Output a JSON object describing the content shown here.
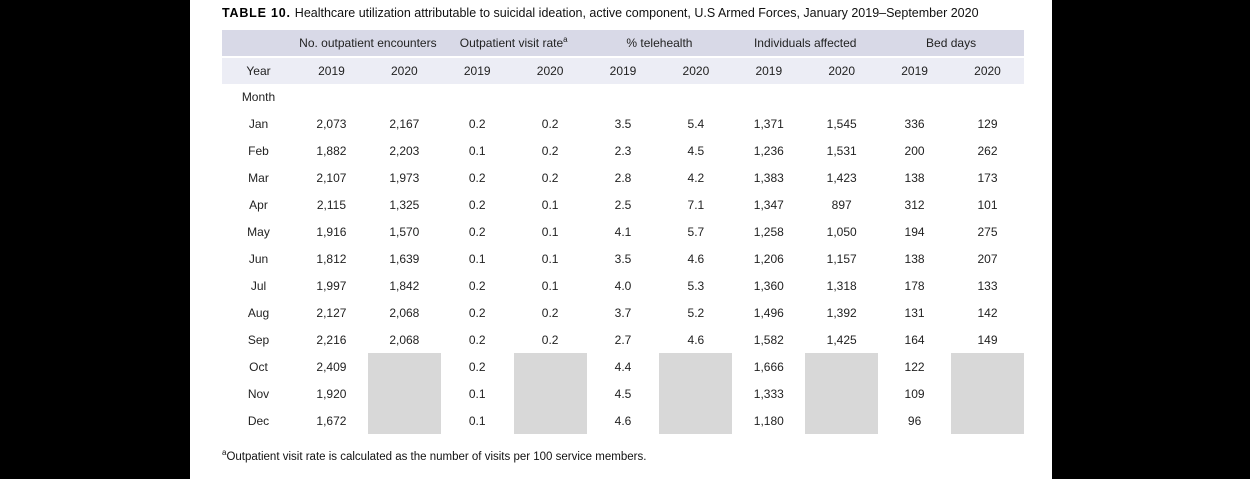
{
  "page": {
    "title_label": "TABLE 10.",
    "title_text": "Healthcare utilization attributable to suicidal ideation, active component, U.S Armed Forces, January 2019–September 2020",
    "footnote_marker": "a",
    "footnote_text": "Outpatient visit rate is calculated as the number of visits  per 100 service members."
  },
  "colors": {
    "group_header_band": "#d8d9e7",
    "year_header_band": "#ecedf5",
    "no_data_mask": "#d8d8d8",
    "text": "#222222"
  },
  "table": {
    "groups": [
      {
        "label": "No. outpatient encounters",
        "sup": ""
      },
      {
        "label": "Outpatient visit rate",
        "sup": "a"
      },
      {
        "label": "% telehealth",
        "sup": ""
      },
      {
        "label": "Individuals affected",
        "sup": ""
      },
      {
        "label": "Bed days",
        "sup": ""
      }
    ],
    "year_row_label": "Year",
    "years": [
      "2019",
      "2020",
      "2019",
      "2020",
      "2019",
      "2020",
      "2019",
      "2020",
      "2019",
      "2020"
    ],
    "month_label": "Month",
    "rows": [
      {
        "month": "Jan",
        "cells": [
          "2,073",
          "2,167",
          "0.2",
          "0.2",
          "3.5",
          "5.4",
          "1,371",
          "1,545",
          "336",
          "129"
        ]
      },
      {
        "month": "Feb",
        "cells": [
          "1,882",
          "2,203",
          "0.1",
          "0.2",
          "2.3",
          "4.5",
          "1,236",
          "1,531",
          "200",
          "262"
        ]
      },
      {
        "month": "Mar",
        "cells": [
          "2,107",
          "1,973",
          "0.2",
          "0.2",
          "2.8",
          "4.2",
          "1,383",
          "1,423",
          "138",
          "173"
        ]
      },
      {
        "month": "Apr",
        "cells": [
          "2,115",
          "1,325",
          "0.2",
          "0.1",
          "2.5",
          "7.1",
          "1,347",
          "897",
          "312",
          "101"
        ]
      },
      {
        "month": "May",
        "cells": [
          "1,916",
          "1,570",
          "0.2",
          "0.1",
          "4.1",
          "5.7",
          "1,258",
          "1,050",
          "194",
          "275"
        ]
      },
      {
        "month": "Jun",
        "cells": [
          "1,812",
          "1,639",
          "0.1",
          "0.1",
          "3.5",
          "4.6",
          "1,206",
          "1,157",
          "138",
          "207"
        ]
      },
      {
        "month": "Jul",
        "cells": [
          "1,997",
          "1,842",
          "0.2",
          "0.1",
          "4.0",
          "5.3",
          "1,360",
          "1,318",
          "178",
          "133"
        ]
      },
      {
        "month": "Aug",
        "cells": [
          "2,127",
          "2,068",
          "0.2",
          "0.2",
          "3.7",
          "5.2",
          "1,496",
          "1,392",
          "131",
          "142"
        ]
      },
      {
        "month": "Sep",
        "cells": [
          "2,216",
          "2,068",
          "0.2",
          "0.2",
          "2.7",
          "4.6",
          "1,582",
          "1,425",
          "164",
          "149"
        ]
      },
      {
        "month": "Oct",
        "cells": [
          "2,409",
          null,
          "0.2",
          null,
          "4.4",
          null,
          "1,666",
          null,
          "122",
          null
        ]
      },
      {
        "month": "Nov",
        "cells": [
          "1,920",
          null,
          "0.1",
          null,
          "4.5",
          null,
          "1,333",
          null,
          "109",
          null
        ]
      },
      {
        "month": "Dec",
        "cells": [
          "1,672",
          null,
          "0.1",
          null,
          "4.6",
          null,
          "1,180",
          null,
          "96",
          null
        ]
      }
    ]
  }
}
